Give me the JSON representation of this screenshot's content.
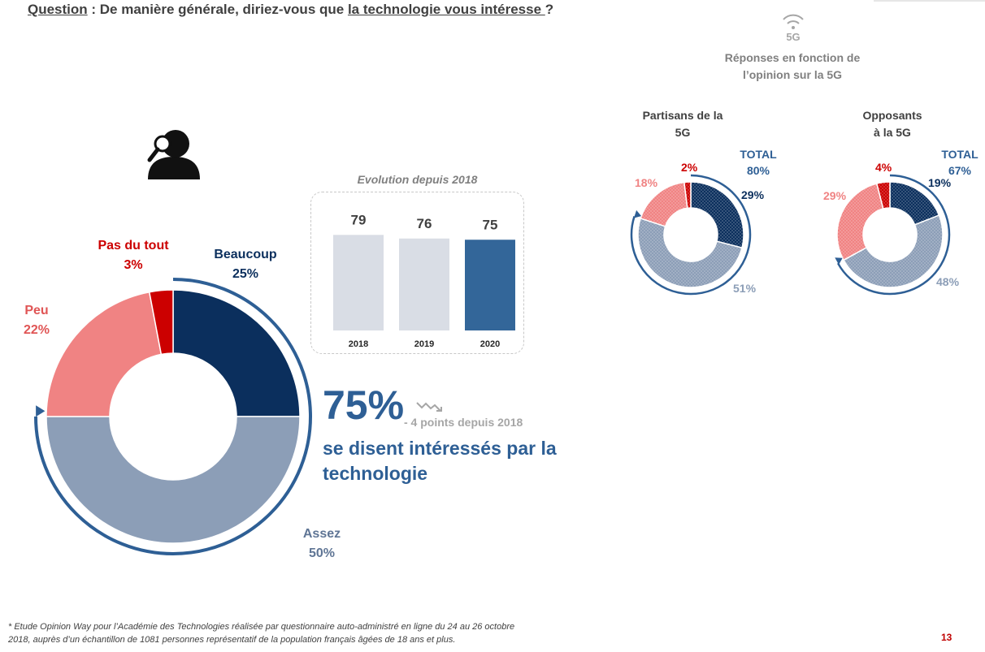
{
  "question": {
    "prefix": "Question",
    "mid": " : De manière générale, diriez-vous que ",
    "highlight": "la technologie vous intéresse ",
    "suffix": "?"
  },
  "icons": [
    "person-magnifier-icon",
    "5g-signal-icon",
    "trend-down-icon"
  ],
  "fivegee_label": "5G",
  "colors": {
    "beaucoup": "#0b2f5d",
    "assez": "#8c9eb7",
    "peu": "#f08383",
    "pas_du_tout": "#cc0000",
    "accent": "#2e5f95",
    "bar_light": "#d9dde5",
    "bar_dark": "#336699"
  },
  "main_labels": {
    "pas_du_tout": {
      "name": "Pas du tout",
      "value": "3%"
    },
    "beaucoup": {
      "name": "Beaucoup",
      "value": "25%"
    },
    "peu": {
      "name": "Peu",
      "value": "22%"
    },
    "assez": {
      "name": "Assez",
      "value": "50%"
    }
  },
  "evolution": {
    "title": "Evolution depuis 2018"
  },
  "headline": {
    "big": "75%",
    "delta": "- 4 points depuis 2018",
    "desc": "se disent intéressés par la technologie"
  },
  "right": {
    "subtitle_line1": "Réponses en fonction de",
    "subtitle_line2": "l’opinion sur la 5G",
    "partisans": {
      "title_l1": "Partisans de la",
      "title_l2": "5G",
      "total_label": "TOTAL",
      "total_value": "80%",
      "beaucoup": "29%",
      "assez": "51%",
      "peu": "18%",
      "pas_du_tout": "2%"
    },
    "opposants": {
      "title_l1": "Opposants",
      "title_l2": "à la 5G",
      "total_label": "TOTAL",
      "total_value": "67%",
      "beaucoup": "19%",
      "assez": "48%",
      "peu": "29%",
      "pas_du_tout": "4%"
    }
  },
  "footnote": {
    "line1": "* Etude Opinion Way pour l’Académie des Technologies réalisée par questionnaire auto-administré en ligne du 24 au 26 octobre",
    "line2": "2018, auprès d’un échantillon de 1081 personnes représentatif de la population français âgées de 18 ans et plus."
  },
  "page_number": "13",
  "chart_data": [
    {
      "type": "pie",
      "categories": [
        "Beaucoup",
        "Assez",
        "Peu",
        "Pas du tout"
      ],
      "values": [
        25,
        50,
        22,
        3
      ],
      "donut": true
    },
    {
      "type": "bar",
      "title": "Evolution depuis 2018",
      "categories": [
        "2018",
        "2019",
        "2020"
      ],
      "values": [
        79,
        76,
        75
      ],
      "ylim": [
        0,
        100
      ]
    },
    {
      "type": "pie",
      "title": "Partisans de la 5G",
      "categories": [
        "Beaucoup",
        "Assez",
        "Peu",
        "Pas du tout"
      ],
      "values": [
        29,
        51,
        18,
        2
      ],
      "donut": true
    },
    {
      "type": "pie",
      "title": "Opposants à la 5G",
      "categories": [
        "Beaucoup",
        "Assez",
        "Peu",
        "Pas du tout"
      ],
      "values": [
        19,
        48,
        29,
        4
      ],
      "donut": true
    }
  ]
}
